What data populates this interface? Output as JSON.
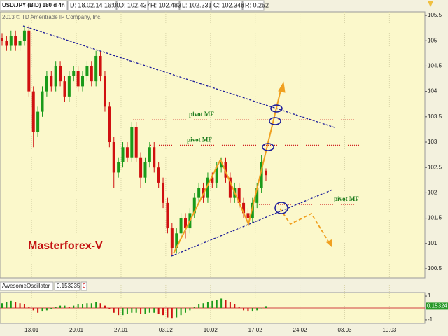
{
  "chart_data": {
    "type": "candlestick",
    "header": {
      "symbol": "USD/JPY (BID) 180 d 4h",
      "date": "D: 18.02.14 16:00",
      "open": "O: 102.437",
      "high": "H: 102.483",
      "low": "L: 102.231",
      "close": "C: 102.348",
      "range": "R: 0.252"
    },
    "copyright": "2013 © TD Ameritrade IP Company, Inc.",
    "watermark": "Masterforex-V",
    "open": [
      105.05,
      105.0,
      104.9,
      105.1,
      104.9,
      105.0,
      105.2,
      104.0,
      103.2,
      103.6,
      104.0,
      104.3,
      104.1,
      104.5,
      104.2,
      103.9,
      104.3,
      104.4,
      104.1,
      104.3,
      104.5,
      104.2,
      104.7,
      104.3,
      103.7,
      103.0,
      102.4,
      102.6,
      102.9,
      102.7,
      103.3,
      102.7,
      102.3,
      102.6,
      102.9,
      102.5,
      102.2,
      101.8,
      101.3,
      100.9,
      101.2,
      101.5,
      101.3,
      101.6,
      101.9,
      102.1,
      101.9,
      102.3,
      102.2,
      102.5,
      102.6,
      102.3,
      101.9,
      102.1,
      101.8,
      101.6,
      101.5,
      101.8,
      102.1,
      102.437
    ],
    "high": [
      105.15,
      105.1,
      105.2,
      105.2,
      105.1,
      105.3,
      105.3,
      104.1,
      103.7,
      104.1,
      104.4,
      104.4,
      104.6,
      104.6,
      104.3,
      104.4,
      104.5,
      104.5,
      104.4,
      104.6,
      104.6,
      104.8,
      104.8,
      104.4,
      103.8,
      103.1,
      102.7,
      103.0,
      103.0,
      103.4,
      103.4,
      102.8,
      102.7,
      103.0,
      103.0,
      102.6,
      102.3,
      101.9,
      101.4,
      101.3,
      101.6,
      101.6,
      101.7,
      102.0,
      102.2,
      102.2,
      102.4,
      102.4,
      102.6,
      102.7,
      102.7,
      102.4,
      102.2,
      102.2,
      101.9,
      101.7,
      101.9,
      102.2,
      102.75,
      102.483
    ],
    "low": [
      104.9,
      104.8,
      104.8,
      104.8,
      104.8,
      104.9,
      103.9,
      102.9,
      103.1,
      103.5,
      103.9,
      104.0,
      104.0,
      104.1,
      103.8,
      103.8,
      104.2,
      104.0,
      104.0,
      104.2,
      104.1,
      104.1,
      104.2,
      103.6,
      102.9,
      102.1,
      102.3,
      102.5,
      102.6,
      102.6,
      102.6,
      102.1,
      102.2,
      102.5,
      102.4,
      102.1,
      101.7,
      101.2,
      100.75,
      100.8,
      101.1,
      101.1,
      101.2,
      101.5,
      101.8,
      101.8,
      101.8,
      102.1,
      102.1,
      102.4,
      102.2,
      101.8,
      101.8,
      101.7,
      101.5,
      101.35,
      101.4,
      101.7,
      102.0,
      102.231
    ],
    "close": [
      105.0,
      104.9,
      105.1,
      104.9,
      105.0,
      105.2,
      104.0,
      103.2,
      103.6,
      104.0,
      104.3,
      104.1,
      104.5,
      104.2,
      103.9,
      104.3,
      104.4,
      104.1,
      104.3,
      104.5,
      104.2,
      104.7,
      104.3,
      103.7,
      103.0,
      102.4,
      102.6,
      102.9,
      102.7,
      103.3,
      102.7,
      102.3,
      102.6,
      102.9,
      102.5,
      102.2,
      101.8,
      101.3,
      100.9,
      101.2,
      101.5,
      101.3,
      101.6,
      101.9,
      102.1,
      101.9,
      102.3,
      102.2,
      102.5,
      102.6,
      102.3,
      101.9,
      102.1,
      101.8,
      101.6,
      101.5,
      101.8,
      102.1,
      102.6,
      102.348
    ],
    "up_color": "#1a9a1a",
    "down_color": "#d01010",
    "ylim": [
      100.32,
      105.57
    ],
    "yticks": [
      100.5,
      101,
      101.5,
      102,
      102.5,
      103,
      103.5,
      104,
      104.5,
      105,
      105.5
    ],
    "xticks": [
      {
        "value": 6.6,
        "label": "13.01"
      },
      {
        "value": 16.6,
        "label": "20.01"
      },
      {
        "value": 26.6,
        "label": "27.01"
      },
      {
        "value": 36.6,
        "label": "03.02"
      },
      {
        "value": 46.6,
        "label": "10.02"
      },
      {
        "value": 56.6,
        "label": "17.02"
      },
      {
        "value": 66.6,
        "label": "24.02"
      },
      {
        "value": 76.6,
        "label": "03.03"
      },
      {
        "value": 86.6,
        "label": "10.03"
      }
    ],
    "pivots": [
      {
        "label": "pivot MF",
        "value": 103.44
      },
      {
        "label": "pivot MF",
        "value": 102.94
      },
      {
        "label": "pivot MF",
        "value": 101.77
      }
    ],
    "oscillator": {
      "name": "AwesomeOscillator",
      "current": "0.153235",
      "param": "0",
      "values": [
        0.4,
        0.5,
        0.6,
        0.5,
        0.4,
        0.3,
        0.1,
        -0.2,
        -0.4,
        -0.3,
        -0.2,
        -0.1,
        0.1,
        0.2,
        0.2,
        0.1,
        0.2,
        0.3,
        0.3,
        0.4,
        0.4,
        0.5,
        0.4,
        0.2,
        -0.1,
        -0.4,
        -0.6,
        -0.6,
        -0.5,
        -0.4,
        -0.4,
        -0.5,
        -0.5,
        -0.4,
        -0.4,
        -0.5,
        -0.6,
        -0.8,
        -0.9,
        -0.8,
        -0.6,
        -0.4,
        -0.2,
        0.1,
        0.3,
        0.4,
        0.5,
        0.6,
        0.7,
        0.8,
        0.7,
        0.5,
        0.3,
        0.1,
        -0.2,
        -0.3,
        -0.3,
        -0.2,
        0.0,
        0.153235
      ],
      "value_label": "0.15324",
      "ylim": [
        -1.3,
        1.3
      ],
      "yticks": [
        1,
        -1
      ]
    }
  }
}
